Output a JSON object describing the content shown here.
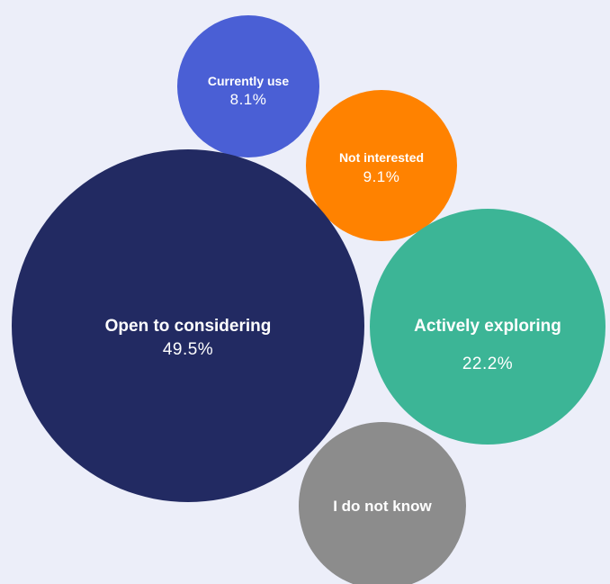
{
  "chart_data": {
    "type": "bubble",
    "title": "",
    "unit": "%",
    "series": [
      {
        "name": "Currently use",
        "value": 8.1,
        "value_label": "8.1%",
        "color": "#4a5fd5"
      },
      {
        "name": "Not interested",
        "value": 9.1,
        "value_label": "9.1%",
        "color": "#ff8200"
      },
      {
        "name": "Open to considering",
        "value": 49.5,
        "value_label": "49.5%",
        "color": "#222a62"
      },
      {
        "name": "Actively exploring",
        "value": 22.2,
        "value_label": "22.2%",
        "color": "#3cb596"
      },
      {
        "name": "I do not know",
        "value_label": "",
        "color": "#8c8c8c"
      }
    ]
  },
  "colors": {
    "background": "#eceef9",
    "label_text": "#ffffff"
  }
}
